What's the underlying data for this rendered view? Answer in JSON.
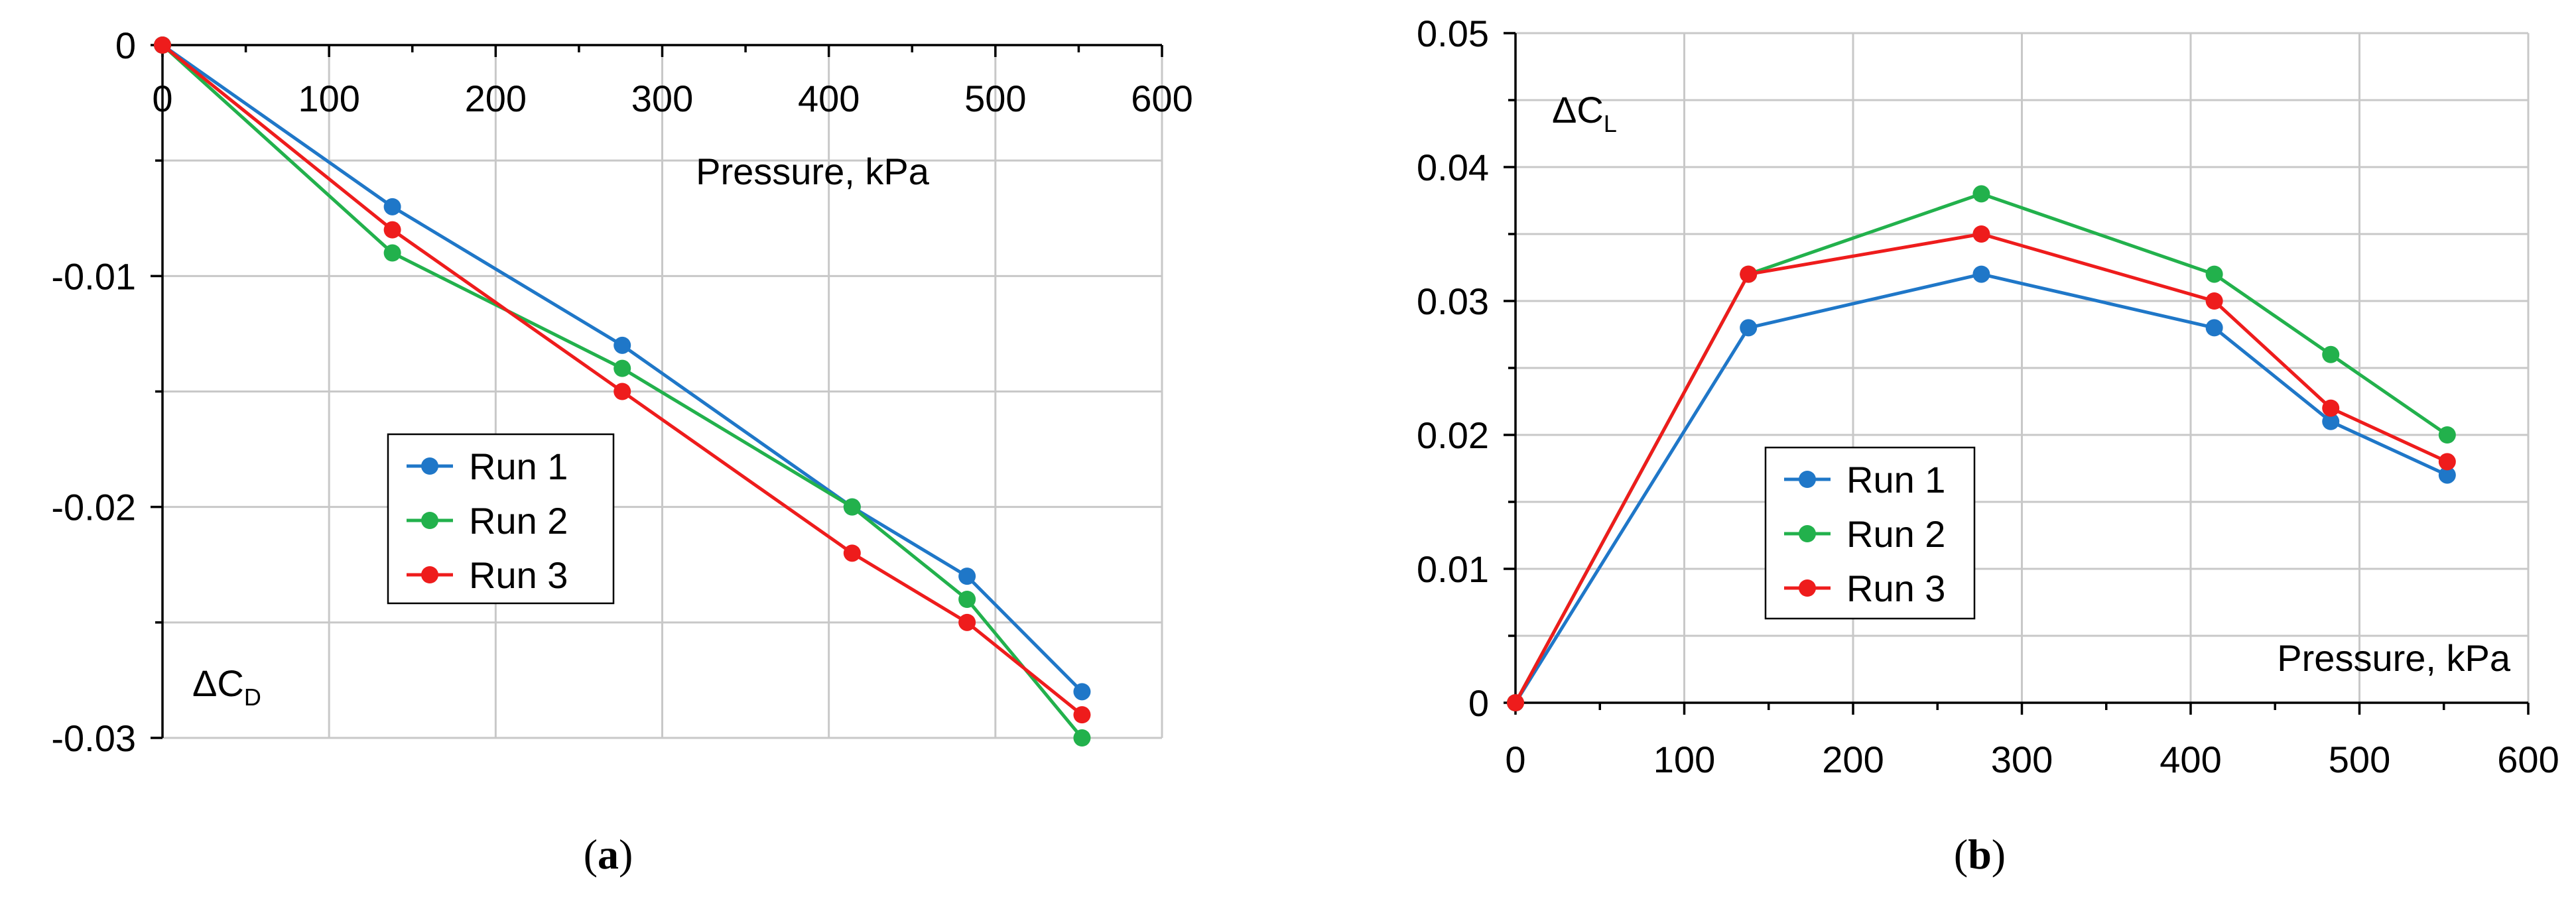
{
  "chart_data": [
    {
      "type": "line",
      "title": "",
      "xlabel": "Pressure, kPa",
      "ylabel_main": "ΔC",
      "ylabel_sub": "D",
      "caption": "a",
      "xlim": [
        0,
        600
      ],
      "ylim": [
        -0.03,
        0
      ],
      "x_ticks": [
        0,
        100,
        200,
        300,
        400,
        500,
        600
      ],
      "y_ticks": [
        0,
        -0.01,
        -0.02,
        -0.03
      ],
      "x_tick_labels": [
        "0",
        "100",
        "200",
        "300",
        "400",
        "500",
        "600"
      ],
      "y_tick_labels": [
        "0",
        "-0.01",
        "-0.02",
        "-0.03"
      ],
      "grid": true,
      "legend": "center-left",
      "series": [
        {
          "name": "Run 1",
          "color": "#1f77c8",
          "x": [
            0,
            138,
            276,
            414,
            483,
            552
          ],
          "y": [
            0,
            -0.007,
            -0.013,
            -0.02,
            -0.023,
            -0.028
          ]
        },
        {
          "name": "Run 2",
          "color": "#22b14c",
          "x": [
            0,
            138,
            276,
            414,
            483,
            552
          ],
          "y": [
            0,
            -0.009,
            -0.014,
            -0.02,
            -0.024,
            -0.03
          ]
        },
        {
          "name": "Run 3",
          "color": "#ee1c1c",
          "x": [
            0,
            138,
            276,
            414,
            483,
            552
          ],
          "y": [
            0,
            -0.008,
            -0.015,
            -0.022,
            -0.025,
            -0.029
          ]
        }
      ]
    },
    {
      "type": "line",
      "title": "",
      "xlabel": "Pressure, kPa",
      "ylabel_main": "ΔC",
      "ylabel_sub": "L",
      "caption": "b",
      "xlim": [
        0,
        600
      ],
      "ylim": [
        0,
        0.05
      ],
      "x_ticks": [
        0,
        100,
        200,
        300,
        400,
        500,
        600
      ],
      "y_ticks": [
        0,
        0.01,
        0.02,
        0.03,
        0.04,
        0.05
      ],
      "x_tick_labels": [
        "0",
        "100",
        "200",
        "300",
        "400",
        "500",
        "600"
      ],
      "y_tick_labels": [
        "0",
        "0.01",
        "0.02",
        "0.03",
        "0.04",
        "0.05"
      ],
      "grid": true,
      "legend": "lower-center",
      "series": [
        {
          "name": "Run 1",
          "color": "#1f77c8",
          "x": [
            0,
            138,
            276,
            414,
            483,
            552
          ],
          "y": [
            0,
            0.028,
            0.032,
            0.028,
            0.021,
            0.017
          ]
        },
        {
          "name": "Run 2",
          "color": "#22b14c",
          "x": [
            0,
            138,
            276,
            414,
            483,
            552
          ],
          "y": [
            0,
            0.032,
            0.038,
            0.032,
            0.026,
            0.02
          ]
        },
        {
          "name": "Run 3",
          "color": "#ee1c1c",
          "x": [
            0,
            138,
            276,
            414,
            483,
            552
          ],
          "y": [
            0,
            0.032,
            0.035,
            0.03,
            0.022,
            0.018
          ]
        }
      ]
    }
  ]
}
